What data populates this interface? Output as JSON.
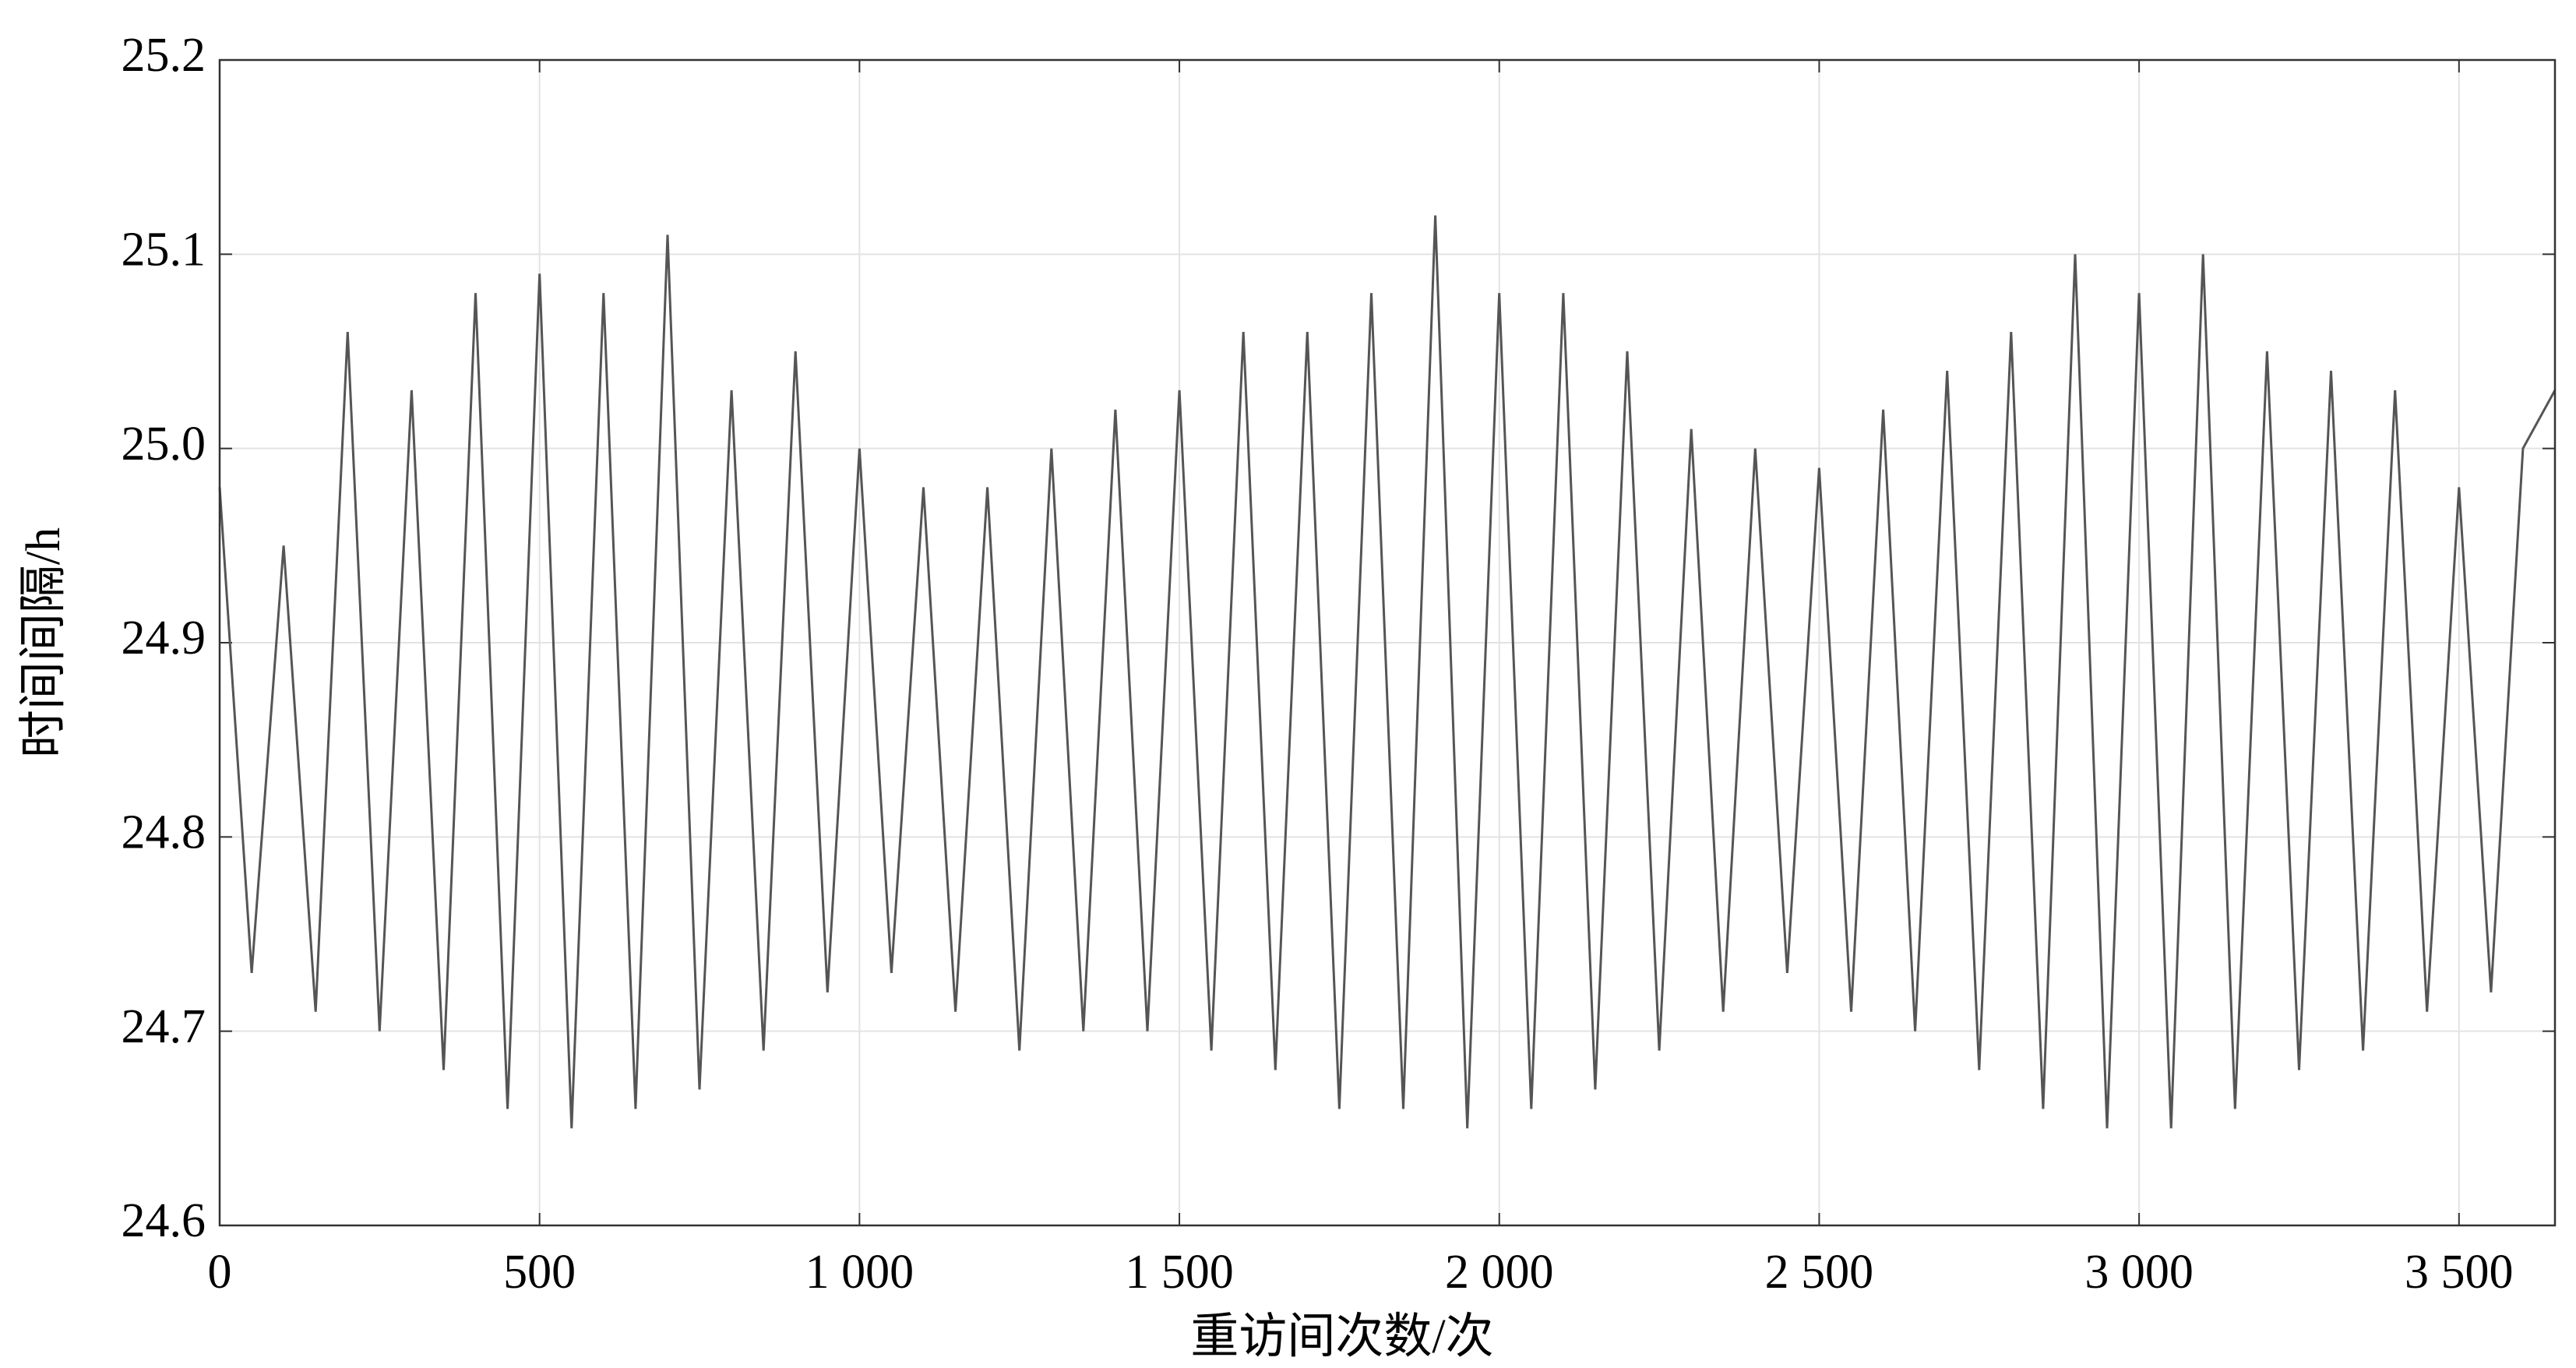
{
  "chart_data": {
    "type": "line",
    "x_label": "重访间次数/次",
    "y_label": "时间间隔/h",
    "x": [
      0,
      50,
      100,
      150,
      200,
      250,
      300,
      350,
      400,
      450,
      500,
      550,
      600,
      650,
      700,
      750,
      800,
      850,
      900,
      950,
      1000,
      1050,
      1100,
      1150,
      1200,
      1250,
      1300,
      1350,
      1400,
      1450,
      1500,
      1550,
      1600,
      1650,
      1700,
      1750,
      1800,
      1850,
      1900,
      1950,
      2000,
      2050,
      2100,
      2150,
      2200,
      2250,
      2300,
      2350,
      2400,
      2450,
      2500,
      2550,
      2600,
      2650,
      2700,
      2750,
      2800,
      2850,
      2900,
      2950,
      3000,
      3050,
      3100,
      3150,
      3200,
      3250,
      3300,
      3350,
      3400,
      3450,
      3500,
      3550,
      3600,
      3650
    ],
    "series": [
      {
        "color": "#555555",
        "values": [
          24.98,
          24.73,
          24.95,
          24.71,
          25.06,
          24.7,
          25.03,
          24.68,
          25.08,
          24.66,
          25.09,
          24.65,
          25.08,
          24.66,
          25.11,
          24.67,
          25.03,
          24.69,
          25.05,
          24.72,
          25.0,
          24.73,
          24.98,
          24.71,
          24.98,
          24.69,
          25.0,
          24.7,
          25.02,
          24.7,
          25.03,
          24.69,
          25.06,
          24.68,
          25.06,
          24.66,
          25.08,
          24.66,
          25.12,
          24.65,
          25.08,
          24.66,
          25.08,
          24.67,
          25.05,
          24.69,
          25.01,
          24.71,
          25.0,
          24.73,
          24.99,
          24.71,
          25.02,
          24.7,
          25.04,
          24.68,
          25.06,
          24.66,
          25.1,
          24.65,
          25.08,
          24.65,
          25.1,
          24.66,
          25.05,
          24.68,
          25.04,
          24.69,
          25.03,
          24.71,
          24.98,
          24.72,
          25.0,
          25.03
        ]
      }
    ],
    "xlim": [
      0,
      3650
    ],
    "xticks": [
      0,
      500,
      {
        "value": 1000,
        "label": "1 000"
      },
      {
        "value": 1500,
        "label": "1 500"
      },
      {
        "value": 2000,
        "label": "2 000"
      },
      {
        "value": 2500,
        "label": "2 500"
      },
      {
        "value": 3000,
        "label": "3 000"
      },
      {
        "value": 3500,
        "label": "3 500"
      }
    ],
    "ylim": [
      24.6,
      25.2
    ],
    "yticks": [
      24.6,
      24.7,
      24.8,
      24.9,
      {
        "value": 25,
        "label": "25.0"
      },
      25.1,
      25.2
    ],
    "grid": true
  }
}
